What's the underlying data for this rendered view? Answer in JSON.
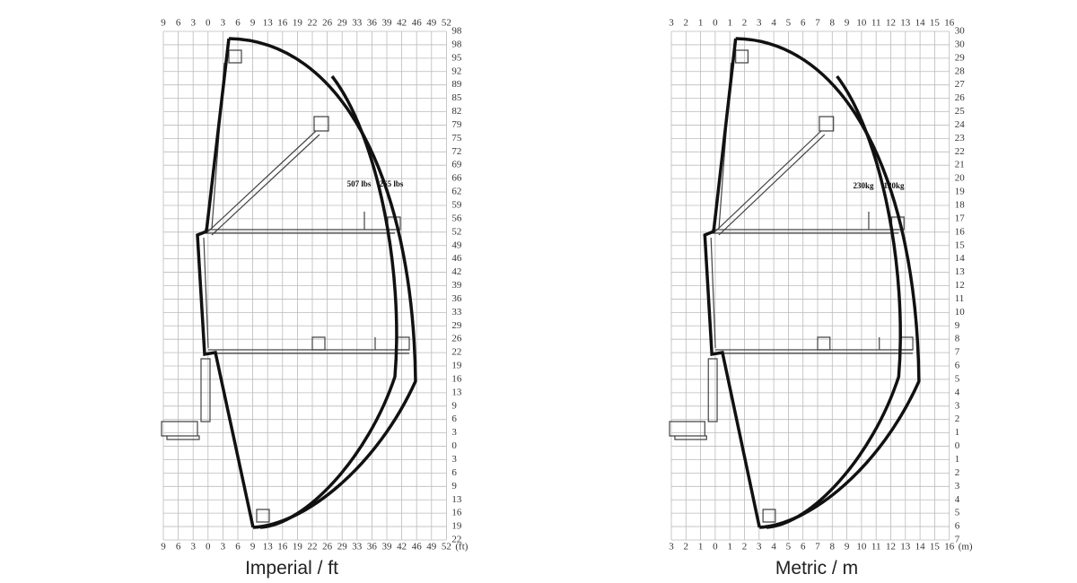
{
  "panels": [
    {
      "caption": "Imperial / ft",
      "unit": "(ft)",
      "x_labels": [
        "9",
        "6",
        "3",
        "0",
        "3",
        "6",
        "9",
        "13",
        "16",
        "19",
        "22",
        "26",
        "29",
        "33",
        "36",
        "39",
        "42",
        "46",
        "49",
        "52"
      ],
      "y_labels": [
        "98",
        "98",
        "95",
        "92",
        "89",
        "85",
        "82",
        "79",
        "75",
        "72",
        "69",
        "66",
        "62",
        "59",
        "56",
        "52",
        "49",
        "46",
        "42",
        "39",
        "36",
        "33",
        "29",
        "26",
        "22",
        "19",
        "16",
        "13",
        "9",
        "6",
        "3",
        "0",
        "3",
        "6",
        "9",
        "13",
        "16",
        "19",
        "22"
      ],
      "load_labels": [
        "507 lbs",
        "265 lbs"
      ]
    },
    {
      "caption": "Metric / m",
      "unit": "(m)",
      "x_labels": [
        "3",
        "2",
        "1",
        "0",
        "1",
        "2",
        "3",
        "4",
        "5",
        "6",
        "7",
        "8",
        "9",
        "10",
        "11",
        "12",
        "13",
        "14",
        "15",
        "16"
      ],
      "y_labels": [
        "30",
        "30",
        "29",
        "28",
        "27",
        "26",
        "25",
        "24",
        "23",
        "22",
        "21",
        "20",
        "19",
        "18",
        "17",
        "16",
        "15",
        "14",
        "13",
        "12",
        "11",
        "10",
        "9",
        "8",
        "7",
        "6",
        "5",
        "4",
        "3",
        "2",
        "1",
        "0",
        "1",
        "2",
        "3",
        "4",
        "5",
        "6",
        "7"
      ],
      "load_labels": [
        "230kg",
        "120kg"
      ]
    }
  ]
}
